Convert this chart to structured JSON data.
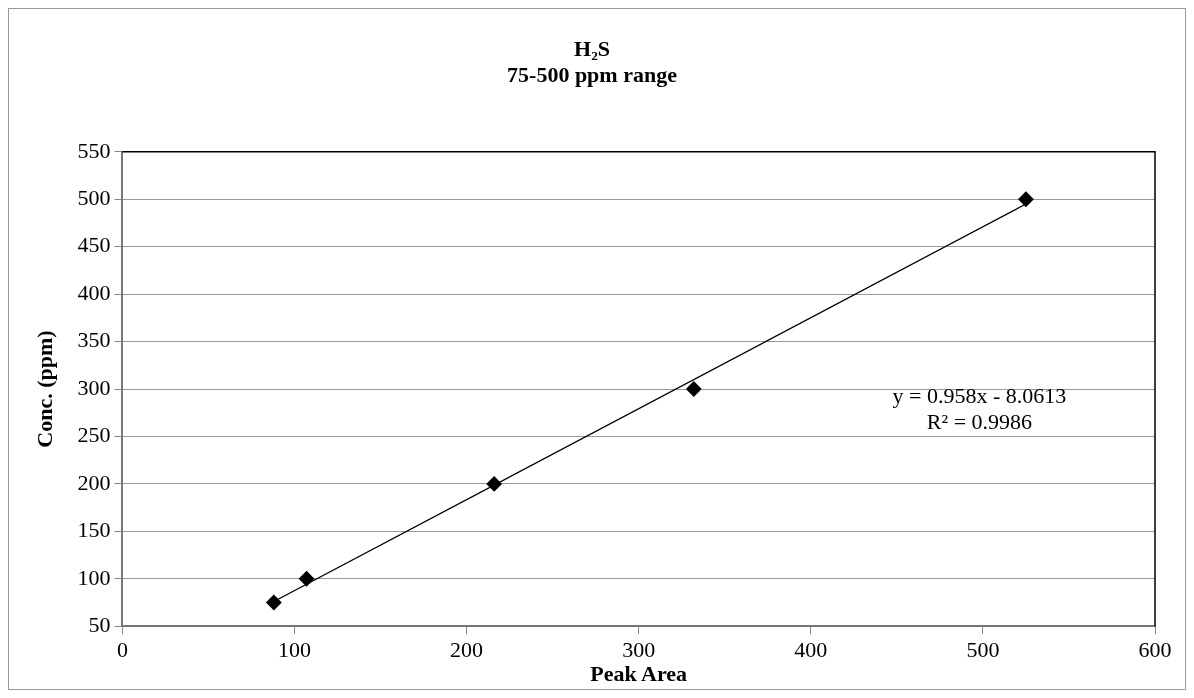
{
  "chart_data": {
    "type": "scatter",
    "title": "H₂S",
    "subtitle": "75-500 ppm range",
    "xlabel": "Peak Area",
    "ylabel": "Conc. (ppm)",
    "xlim": [
      0,
      600
    ],
    "xticks": [
      0,
      100,
      200,
      300,
      400,
      500,
      600
    ],
    "ylim": [
      50,
      550
    ],
    "yticks": [
      50,
      100,
      150,
      200,
      250,
      300,
      350,
      400,
      450,
      500,
      550
    ],
    "grid": "y",
    "legend": false,
    "marker": "diamond",
    "series": [
      {
        "color": "#000000",
        "x": [
          88,
          107,
          216,
          332,
          525
        ],
        "values": [
          75,
          100,
          200,
          300,
          500
        ]
      },
      {
        "type": "line",
        "color": "#000000",
        "marker": "none",
        "line_style": "solid",
        "x": [
          88,
          525
        ],
        "values": [
          76,
          495
        ]
      }
    ],
    "annotations": [
      "y = 0.958x - 8.0613",
      "R² = 0.9986"
    ]
  }
}
